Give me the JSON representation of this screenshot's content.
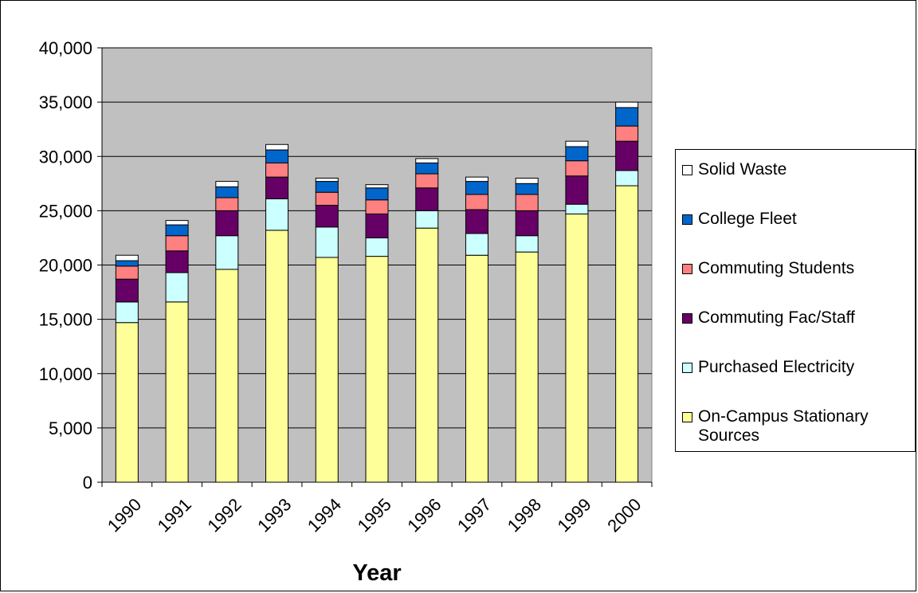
{
  "chart_data": {
    "type": "bar",
    "stacked": true,
    "title": "",
    "xlabel": "Year",
    "ylabel": "",
    "ylim": [
      0,
      40000
    ],
    "yticks": [
      0,
      5000,
      10000,
      15000,
      20000,
      25000,
      30000,
      35000,
      40000
    ],
    "ytick_labels": [
      "0",
      "5,000",
      "10,000",
      "15,000",
      "20,000",
      "25,000",
      "30,000",
      "35,000",
      "40,000"
    ],
    "grid": true,
    "legend_position": "right",
    "plot_background": "#c0c0c0",
    "categories": [
      "1990",
      "1991",
      "1992",
      "1993",
      "1994",
      "1995",
      "1996",
      "1997",
      "1998",
      "1999",
      "2000"
    ],
    "series": [
      {
        "name": "On-Campus Stationary Sources",
        "color": "#ffff99",
        "values": [
          14700,
          16600,
          19600,
          23200,
          20700,
          20800,
          23400,
          20900,
          21200,
          24700,
          27300
        ]
      },
      {
        "name": "Purchased Electricity",
        "color": "#ccffff",
        "values": [
          1900,
          2700,
          3100,
          2900,
          2800,
          1700,
          1600,
          2000,
          1500,
          900,
          1400
        ]
      },
      {
        "name": "Commuting Fac/Staff",
        "color": "#660066",
        "values": [
          2100,
          2000,
          2300,
          2000,
          2000,
          2200,
          2100,
          2200,
          2300,
          2600,
          2700
        ]
      },
      {
        "name": "Commuting Students",
        "color": "#ff8080",
        "values": [
          1200,
          1400,
          1200,
          1300,
          1200,
          1300,
          1300,
          1400,
          1500,
          1400,
          1400
        ]
      },
      {
        "name": "College Fleet",
        "color": "#0066cc",
        "values": [
          500,
          1000,
          1000,
          1200,
          1000,
          1100,
          1000,
          1200,
          1000,
          1300,
          1700
        ]
      },
      {
        "name": "Solid Waste",
        "color": "#ffffff",
        "values": [
          500,
          400,
          500,
          500,
          300,
          300,
          400,
          400,
          500,
          500,
          500
        ]
      }
    ]
  }
}
